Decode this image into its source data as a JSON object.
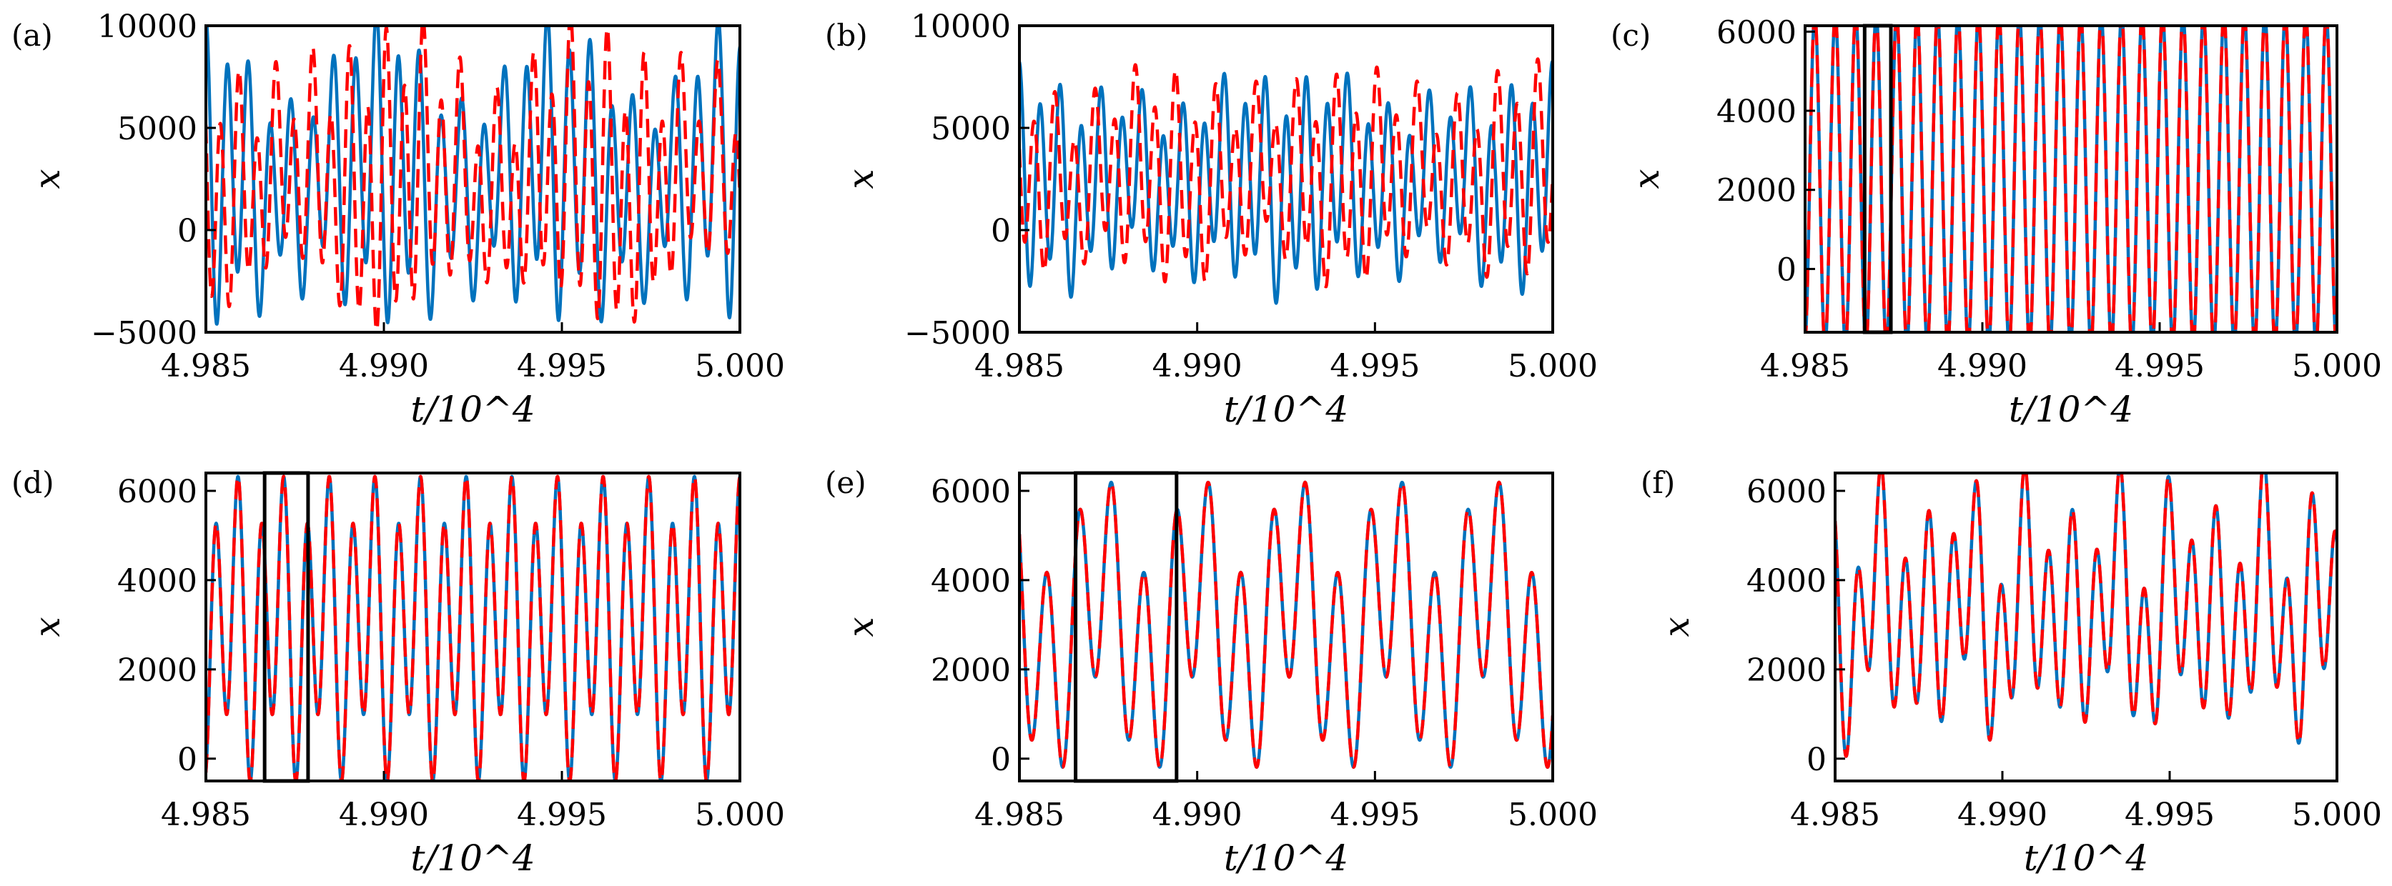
{
  "chart_data": [
    {
      "type": "line",
      "panel_label": "(a)",
      "xlabel": "t/10^4",
      "ylabel": "x",
      "xlim": [
        4.985,
        5.0
      ],
      "ylim": [
        -5000,
        10000
      ],
      "xticks": [
        "4.985",
        "4.990",
        "4.995",
        "5.000"
      ],
      "yticks": [
        {
          "v": 10000,
          "l": "10000"
        },
        {
          "v": 5000,
          "l": "5000"
        },
        {
          "v": 0,
          "l": "0"
        },
        {
          "v": -5000,
          "l": "−5000"
        }
      ],
      "box": null,
      "series": [
        {
          "name": "solid",
          "color": "#0072bd",
          "dash": false,
          "model": {
            "offset": 2500,
            "terms": [
              [
                5200,
                25,
                0
              ],
              [
                1500,
                12.5,
                1.0
              ],
              [
                900,
                3,
                0.5
              ]
            ],
            "mod": [
              0.25,
              3,
              0
            ]
          }
        },
        {
          "name": "dashed",
          "color": "#ff0000",
          "dash": true,
          "model": {
            "offset": 2400,
            "terms": [
              [
                5000,
                29,
                1.3
              ],
              [
                1700,
                14.5,
                0.4
              ],
              [
                800,
                4,
                2
              ]
            ],
            "mod": [
              0.25,
              2.5,
              1
            ]
          }
        }
      ]
    },
    {
      "type": "line",
      "panel_label": "(b)",
      "xlabel": "t/10^4",
      "ylabel": "x",
      "xlim": [
        4.985,
        5.0
      ],
      "ylim": [
        -5000,
        10000
      ],
      "xticks": [
        "4.985",
        "4.990",
        "4.995",
        "5.000"
      ],
      "yticks": [
        {
          "v": 10000,
          "l": "10000"
        },
        {
          "v": 5000,
          "l": "5000"
        },
        {
          "v": 0,
          "l": "0"
        },
        {
          "v": -5000,
          "l": "−5000"
        }
      ],
      "box": null,
      "series": [
        {
          "name": "solid",
          "color": "#0072bd",
          "dash": false,
          "model": {
            "offset": 2300,
            "terms": [
              [
                4000,
                26,
                0
              ],
              [
                1200,
                13,
                0.8
              ],
              [
                500,
                5,
                0
              ]
            ],
            "mod": [
              0.15,
              2,
              0
            ]
          }
        },
        {
          "name": "dashed",
          "color": "#ff0000",
          "dash": true,
          "model": {
            "offset": 2600,
            "terms": [
              [
                3800,
                26.5,
                1.6
              ],
              [
                1300,
                13.25,
                0.2
              ],
              [
                400,
                4,
                1
              ]
            ],
            "mod": [
              0.15,
              3,
              1
            ]
          }
        }
      ]
    },
    {
      "type": "line",
      "panel_label": "(c)",
      "xlabel": "t/10^4",
      "ylabel": "x",
      "xlim": [
        4.985,
        5.0
      ],
      "ylim": [
        -1600,
        6150
      ],
      "xticks": [
        "4.985",
        "4.990",
        "4.995",
        "5.000"
      ],
      "yticks": [
        {
          "v": 6000,
          "l": "6000"
        },
        {
          "v": 4000,
          "l": "4000"
        },
        {
          "v": 2000,
          "l": "2000"
        },
        {
          "v": 0,
          "l": "0"
        }
      ],
      "box": [
        4.98668,
        4.98742
      ],
      "series": [
        {
          "name": "solid",
          "color": "#0072bd",
          "dash": false,
          "model": {
            "offset": 2250,
            "terms": [
              [
                4200,
                26,
                3.3
              ]
            ],
            "mod": [
              0,
              1,
              0
            ]
          }
        },
        {
          "name": "dashed",
          "color": "#ff0000",
          "dash": true,
          "model": {
            "offset": 2250,
            "terms": [
              [
                4200,
                26,
                3.3
              ]
            ],
            "mod": [
              0,
              1,
              0
            ]
          }
        }
      ]
    },
    {
      "type": "line",
      "panel_label": "(d)",
      "xlabel": "t/10^4",
      "ylabel": "x",
      "xlim": [
        4.985,
        5.0
      ],
      "ylim": [
        -500,
        6400
      ],
      "xticks": [
        "4.985",
        "4.990",
        "4.995",
        "5.000"
      ],
      "yticks": [
        {
          "v": 6000,
          "l": "6000"
        },
        {
          "v": 4000,
          "l": "4000"
        },
        {
          "v": 2000,
          "l": "2000"
        },
        {
          "v": 0,
          "l": "0"
        }
      ],
      "box": [
        4.98665,
        4.98787
      ],
      "series": [
        {
          "name": "solid",
          "color": "#0072bd",
          "dash": false,
          "model": {
            "offset": 3012,
            "terms": [
              [
                2762,
                23.4,
                3.6
              ],
              [
                525,
                11.7,
                1.8
              ],
              [
                750,
                11.7,
                3.37
              ]
            ],
            "mod": [
              0,
              1,
              0
            ]
          }
        },
        {
          "name": "dashed",
          "color": "#ff0000",
          "dash": true,
          "model": {
            "offset": 3012,
            "terms": [
              [
                2762,
                23.4,
                3.6
              ],
              [
                525,
                11.7,
                1.8
              ],
              [
                750,
                11.7,
                3.37
              ]
            ],
            "mod": [
              0,
              1,
              0
            ]
          }
        }
      ]
    },
    {
      "type": "line",
      "panel_label": "(e)",
      "xlabel": "t/10^4",
      "ylabel": "x",
      "xlim": [
        4.985,
        5.0
      ],
      "ylim": [
        -500,
        6400
      ],
      "xticks": [
        "4.985",
        "4.990",
        "4.995",
        "5.000"
      ],
      "yticks": [
        {
          "v": 6000,
          "l": "6000"
        },
        {
          "v": 4000,
          "l": "4000"
        },
        {
          "v": 2000,
          "l": "2000"
        },
        {
          "v": 0,
          "l": "0"
        }
      ],
      "box": [
        4.98658,
        4.98942
      ],
      "series": [
        {
          "name": "solid",
          "color": "#0072bd",
          "dash": false,
          "model": {
            "offset": 3000,
            "terms": [
              [
                2300,
                16.5,
                0.9
              ],
              [
                900,
                5.5,
                0.3
              ],
              [
                800,
                5.5,
                1.9
              ]
            ],
            "mod": [
              0,
              1,
              0
            ]
          }
        },
        {
          "name": "dashed",
          "color": "#ff0000",
          "dash": true,
          "model": {
            "offset": 3000,
            "terms": [
              [
                2300,
                16.5,
                0.9
              ],
              [
                900,
                5.5,
                0.3
              ],
              [
                800,
                5.5,
                1.9
              ]
            ],
            "mod": [
              0,
              1,
              0
            ]
          }
        }
      ]
    },
    {
      "type": "line",
      "panel_label": "(f)",
      "xlabel": "t/10^4",
      "ylabel": "x",
      "xlim": [
        4.985,
        5.0
      ],
      "ylim": [
        -500,
        6400
      ],
      "xticks": [
        "4.985",
        "4.990",
        "4.995",
        "5.000"
      ],
      "yticks": [
        {
          "v": 6000,
          "l": "6000"
        },
        {
          "v": 4000,
          "l": "4000"
        },
        {
          "v": 2000,
          "l": "2000"
        },
        {
          "v": 0,
          "l": "0"
        }
      ],
      "box": null,
      "series": [
        {
          "name": "solid",
          "color": "#0072bd",
          "dash": false,
          "model": {
            "offset": 3300,
            "terms": [
              [
                2000,
                21,
                0.4
              ],
              [
                900,
                10.3,
                1.0
              ],
              [
                600,
                6.7,
                2.1
              ]
            ],
            "mod": [
              0,
              1,
              0
            ]
          }
        },
        {
          "name": "dashed",
          "color": "#ff0000",
          "dash": true,
          "model": {
            "offset": 3300,
            "terms": [
              [
                2000,
                21,
                0.4
              ],
              [
                900,
                10.3,
                1.0
              ],
              [
                600,
                6.7,
                2.1
              ]
            ],
            "mod": [
              0,
              1,
              0
            ]
          }
        }
      ]
    }
  ]
}
